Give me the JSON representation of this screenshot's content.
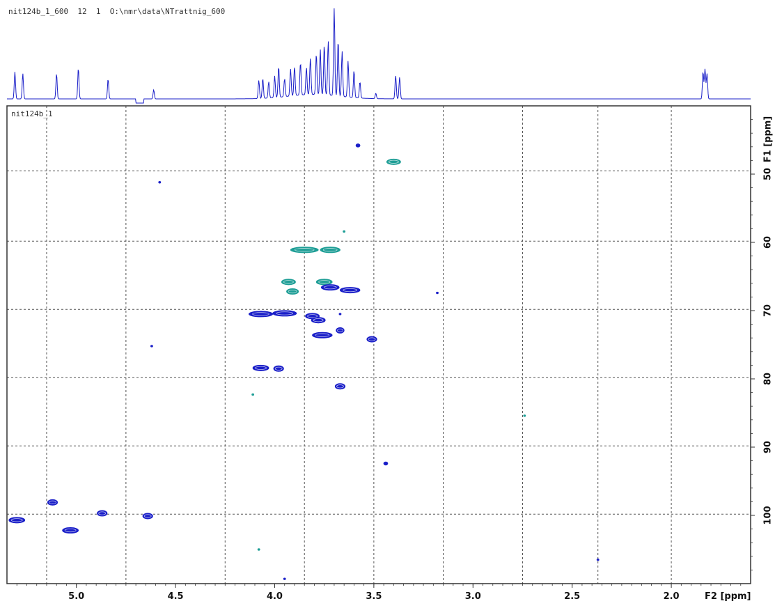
{
  "header": {
    "dataset_info": "nit124b_1_600  12  1  O:\\nmr\\data\\NTrattnig_600"
  },
  "plot": {
    "inset_label": "nit124b_1"
  },
  "chart_data": {
    "type": "scatter",
    "plot_kind": "2D NMR HSQC contour",
    "x_axis": {
      "label": "F2 [ppm]",
      "range": [
        5.35,
        1.6
      ],
      "reversed": true,
      "ticks": [
        5.0,
        4.5,
        4.0,
        3.5,
        3.0,
        2.5,
        2.0
      ],
      "tick_labels": [
        "5.0",
        "4.5",
        "4.0",
        "3.5",
        "3.0",
        "2.5",
        "2.0"
      ]
    },
    "y_axis": {
      "label": "F1 [ppm]",
      "range": [
        40.0,
        110.0
      ],
      "reversed": true,
      "ticks": [
        50,
        60,
        70,
        80,
        90,
        100
      ],
      "tick_labels": [
        "50",
        "60",
        "70",
        "80",
        "90",
        "100"
      ]
    },
    "grid": true,
    "colors": {
      "positive": "#1a1fc8",
      "negative": "#1f9e96",
      "projection": "#1a1fc8",
      "grid": "#555555",
      "frame": "#333333"
    },
    "projection_peaks": [
      {
        "x": 5.31,
        "h": 0.3
      },
      {
        "x": 5.27,
        "h": 0.28
      },
      {
        "x": 5.1,
        "h": 0.28
      },
      {
        "x": 4.99,
        "h": 0.34
      },
      {
        "x": 4.84,
        "h": 0.22
      },
      {
        "x": 4.61,
        "h": 0.1
      },
      {
        "x": 4.08,
        "h": 0.2
      },
      {
        "x": 4.06,
        "h": 0.22
      },
      {
        "x": 4.03,
        "h": 0.18
      },
      {
        "x": 4.0,
        "h": 0.24
      },
      {
        "x": 3.98,
        "h": 0.34
      },
      {
        "x": 3.95,
        "h": 0.2
      },
      {
        "x": 3.92,
        "h": 0.3
      },
      {
        "x": 3.9,
        "h": 0.32
      },
      {
        "x": 3.87,
        "h": 0.36
      },
      {
        "x": 3.84,
        "h": 0.3
      },
      {
        "x": 3.82,
        "h": 0.4
      },
      {
        "x": 3.79,
        "h": 0.45
      },
      {
        "x": 3.77,
        "h": 0.5
      },
      {
        "x": 3.75,
        "h": 0.55
      },
      {
        "x": 3.73,
        "h": 0.6
      },
      {
        "x": 3.7,
        "h": 1.0
      },
      {
        "x": 3.68,
        "h": 0.62
      },
      {
        "x": 3.66,
        "h": 0.5
      },
      {
        "x": 3.63,
        "h": 0.4
      },
      {
        "x": 3.6,
        "h": 0.3
      },
      {
        "x": 3.57,
        "h": 0.18
      },
      {
        "x": 3.49,
        "h": 0.06
      },
      {
        "x": 3.39,
        "h": 0.26
      },
      {
        "x": 3.37,
        "h": 0.24
      },
      {
        "x": 1.84,
        "h": 0.3
      },
      {
        "x": 1.83,
        "h": 0.33
      },
      {
        "x": 1.82,
        "h": 0.28
      }
    ],
    "cross_peaks": [
      {
        "x": 3.4,
        "y": 48.2,
        "w": 0.07,
        "sign": "negative"
      },
      {
        "x": 3.58,
        "y": 45.8,
        "w": 0.02,
        "sign": "positive"
      },
      {
        "x": 4.58,
        "y": 51.2,
        "w": 0.01,
        "sign": "positive"
      },
      {
        "x": 3.65,
        "y": 58.4,
        "w": 0.01,
        "sign": "negative"
      },
      {
        "x": 3.85,
        "y": 61.1,
        "w": 0.14,
        "sign": "negative"
      },
      {
        "x": 3.72,
        "y": 61.1,
        "w": 0.1,
        "sign": "negative"
      },
      {
        "x": 3.93,
        "y": 65.8,
        "w": 0.07,
        "sign": "negative"
      },
      {
        "x": 3.75,
        "y": 65.8,
        "w": 0.08,
        "sign": "negative"
      },
      {
        "x": 3.91,
        "y": 67.2,
        "w": 0.06,
        "sign": "negative"
      },
      {
        "x": 3.72,
        "y": 66.6,
        "w": 0.09,
        "sign": "positive"
      },
      {
        "x": 3.62,
        "y": 67.0,
        "w": 0.1,
        "sign": "positive"
      },
      {
        "x": 3.18,
        "y": 67.4,
        "w": 0.01,
        "sign": "positive"
      },
      {
        "x": 4.07,
        "y": 70.5,
        "w": 0.12,
        "sign": "positive"
      },
      {
        "x": 3.95,
        "y": 70.4,
        "w": 0.12,
        "sign": "positive"
      },
      {
        "x": 3.81,
        "y": 70.8,
        "w": 0.07,
        "sign": "positive"
      },
      {
        "x": 3.78,
        "y": 71.4,
        "w": 0.07,
        "sign": "positive"
      },
      {
        "x": 3.67,
        "y": 70.5,
        "w": 0.01,
        "sign": "positive"
      },
      {
        "x": 3.67,
        "y": 72.9,
        "w": 0.04,
        "sign": "positive"
      },
      {
        "x": 3.76,
        "y": 73.6,
        "w": 0.1,
        "sign": "positive"
      },
      {
        "x": 3.51,
        "y": 74.2,
        "w": 0.05,
        "sign": "positive"
      },
      {
        "x": 4.62,
        "y": 75.2,
        "w": 0.01,
        "sign": "positive"
      },
      {
        "x": 4.07,
        "y": 78.4,
        "w": 0.08,
        "sign": "positive"
      },
      {
        "x": 3.98,
        "y": 78.5,
        "w": 0.05,
        "sign": "positive"
      },
      {
        "x": 3.67,
        "y": 81.1,
        "w": 0.05,
        "sign": "positive"
      },
      {
        "x": 4.11,
        "y": 82.3,
        "w": 0.01,
        "sign": "negative"
      },
      {
        "x": 2.74,
        "y": 85.4,
        "w": 0.01,
        "sign": "negative"
      },
      {
        "x": 3.44,
        "y": 92.4,
        "w": 0.02,
        "sign": "positive"
      },
      {
        "x": 5.12,
        "y": 98.1,
        "w": 0.05,
        "sign": "positive"
      },
      {
        "x": 4.87,
        "y": 99.7,
        "w": 0.05,
        "sign": "positive"
      },
      {
        "x": 5.3,
        "y": 100.7,
        "w": 0.08,
        "sign": "positive"
      },
      {
        "x": 4.64,
        "y": 100.1,
        "w": 0.05,
        "sign": "positive"
      },
      {
        "x": 5.03,
        "y": 102.2,
        "w": 0.08,
        "sign": "positive"
      },
      {
        "x": 4.08,
        "y": 105.0,
        "w": 0.01,
        "sign": "negative"
      },
      {
        "x": 2.37,
        "y": 106.5,
        "w": 0.01,
        "sign": "positive"
      },
      {
        "x": 3.95,
        "y": 109.3,
        "w": 0.01,
        "sign": "positive"
      }
    ]
  }
}
